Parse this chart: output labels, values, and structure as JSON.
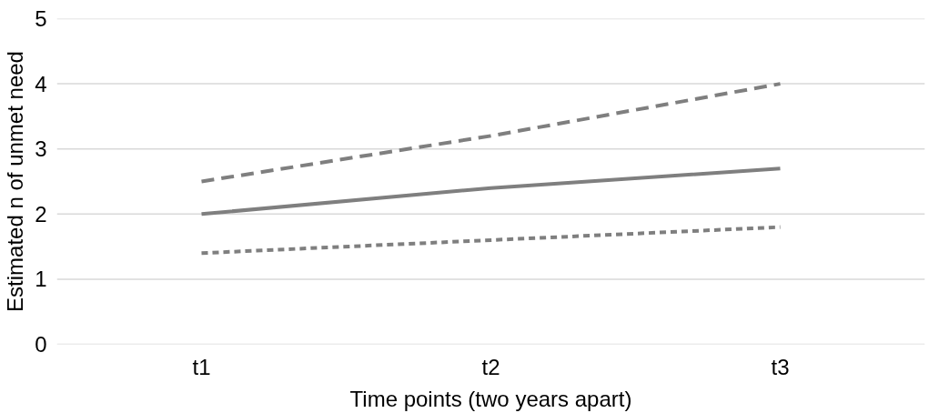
{
  "chart_data": {
    "type": "line",
    "xlabel": "Time points (two years apart)",
    "ylabel": "Estimated n of unmet need",
    "categories": [
      "t1",
      "t2",
      "t3"
    ],
    "series": [
      {
        "color": "#7f7f7f",
        "line_style": "dashed",
        "values": [
          2.5,
          3.2,
          4.0
        ]
      },
      {
        "color": "#7f7f7f",
        "line_style": "solid",
        "values": [
          2.0,
          2.4,
          2.7
        ]
      },
      {
        "color": "#7f7f7f",
        "line_style": "dotted",
        "values": [
          1.4,
          1.6,
          1.8
        ]
      }
    ],
    "ylim": [
      0,
      5
    ],
    "yticks": [
      0,
      1,
      2,
      3,
      4,
      5
    ],
    "grid": "y"
  }
}
